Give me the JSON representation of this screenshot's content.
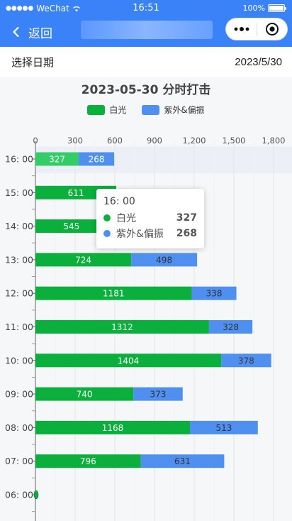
{
  "status_bar": {
    "signal": "●●●●●",
    "carrier": "WeChat",
    "time": "16:51",
    "battery": "100%"
  },
  "nav": {
    "back_label": "返回"
  },
  "date_row": {
    "label": "选择日期",
    "value": "2023/5/30"
  },
  "colors": {
    "primary": "#3a82f7",
    "white_light": "#0aaf3c",
    "white_light_highlight": "#33cc66",
    "uv": "#4f8ff0"
  },
  "tooltip": {
    "title": "16: 00",
    "rows": [
      {
        "name": "白光",
        "value": "327",
        "color": "#0aaf3c"
      },
      {
        "name": "紫外&偏振",
        "value": "268",
        "color": "#4f8ff0"
      }
    ]
  },
  "chart_data": {
    "type": "bar",
    "orientation": "horizontal",
    "stacked": true,
    "title": "2023-05-30 分时打击",
    "xlim": [
      0,
      1800
    ],
    "xticks": [
      "0",
      "300",
      "600",
      "900",
      "1,200",
      "1,500",
      "1,800"
    ],
    "categories": [
      "16: 00",
      "15: 00",
      "14: 00",
      "13: 00",
      "12: 00",
      "11: 00",
      "10: 00",
      "09: 00",
      "08: 00",
      "07: 00",
      "06: 00"
    ],
    "highlighted_category": "16: 00",
    "grid": true,
    "legend_position": "top-center",
    "series": [
      {
        "name": "白光",
        "color": "#0aaf3c",
        "values": [
          327,
          611,
          545,
          724,
          1181,
          1312,
          1404,
          740,
          1168,
          796,
          0
        ]
      },
      {
        "name": "紫外&偏振",
        "color": "#4f8ff0",
        "values": [
          268,
          null,
          null,
          498,
          338,
          328,
          378,
          373,
          513,
          631,
          0
        ]
      }
    ]
  }
}
